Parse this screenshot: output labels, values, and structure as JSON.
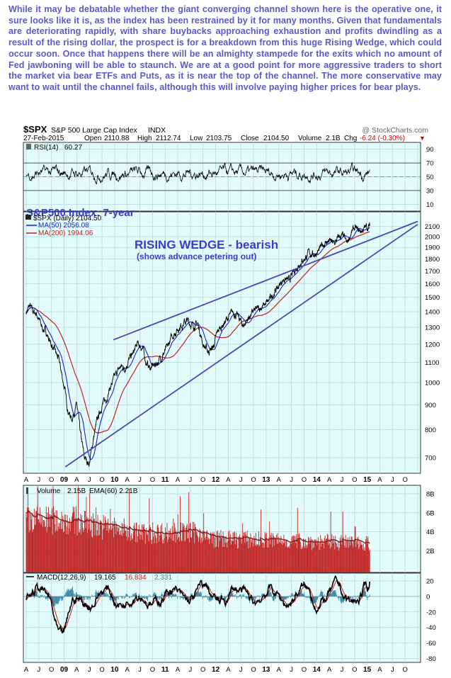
{
  "commentary": "While it may be debatable whether the giant converging channel shown here is the operative one, it sure looks like it is, as the index has been restrained by it for many months. Given that fundamentals are deteriorating rapidly, with share buybacks approaching exhaustion and profits dwindling as a result of the rising dollar, the prospect is for a breakdown from this huge Rising Wedge, which could occur soon. Once that happens there will be an almighty stampede for the exits which no amount of Fed jawboning will be able to staunch. We are at a good point for more aggressive traders to short the market via bear ETFs and Puts, as it is near the top of the channel. The more conservative may want to wait until the channel fails, although this will involve paying higher prices for bear plays.",
  "header": {
    "symbol": "$SPX",
    "name": "S&P 500 Large Cap Index",
    "exchange": "INDX",
    "credit": "@ StockCharts.com",
    "date": "27-Feb-2015",
    "open_label": "Open",
    "open": "2110.88",
    "high_label": "High",
    "high": "2112.74",
    "low_label": "Low",
    "low": "2103.75",
    "close_label": "Close",
    "close": "2104.50",
    "volume_label": "Volume",
    "volume": "2.1B",
    "chg_label": "Chg",
    "chg": "-6.24 (-0.30%)",
    "chg_arrow": "▼"
  },
  "colors": {
    "panel_bg": "#e3fbfb",
    "grid": "#b9dada",
    "commentary": "#5a5acc",
    "annotation": "#3b3bd0",
    "trendline": "#4848b8",
    "price": "#000000",
    "ma50": "#1e1ed8",
    "ma200": "#c81e1e",
    "volume_bar": "#c02828",
    "macd_signal": "#3a8aa8",
    "chg_red": "#cc0000"
  },
  "rsi_panel": {
    "legend_symbol": "RSI(14)",
    "legend_value": "60.27",
    "ticks": [
      "90",
      "70",
      "50",
      "30",
      "10"
    ]
  },
  "price_panel": {
    "annotation_period": "S&P500 Index: 7-year",
    "annotation_title": "RISING WEDGE - bearish",
    "annotation_sub": "(shows advance petering out)",
    "legend": [
      {
        "label": "$SPX (Daily) 2104.50"
      },
      {
        "label": "MA(50) 2056.08"
      },
      {
        "label": "MA(200) 1994.06"
      }
    ]
  },
  "volume_panel": {
    "legend_prefix": "Volume",
    "legend_value": "2.15B",
    "legend_ema": "EMA(60) 2.21B",
    "ticks": [
      "8B",
      "6B",
      "4B",
      "2B"
    ]
  },
  "macd_panel": {
    "legend_prefix": "MACD(12,26,9)",
    "legend_macd": "19.165",
    "legend_signal": "16.834",
    "legend_hist": "2.331"
  },
  "month_labels": [
    "A",
    "J",
    "O",
    "09",
    "A",
    "J",
    "O",
    "10",
    "A",
    "J",
    "O",
    "11",
    "A",
    "J",
    "O",
    "12",
    "A",
    "J",
    "O",
    "13",
    "A",
    "J",
    "O",
    "14",
    "A",
    "J",
    "O",
    "15",
    "A",
    "J",
    "O"
  ],
  "chart_data": {
    "type": "line",
    "x_axis": "time (quarters, Apr-2008 to Oct-2015)",
    "price": {
      "scale": "log",
      "ticks": [
        700,
        800,
        900,
        1000,
        1100,
        1200,
        1300,
        1400,
        1500,
        1600,
        1700,
        1800,
        1900,
        2000,
        2100
      ],
      "series": [
        {
          "name": "$SPX (Daily)",
          "t": [
            0,
            0.15,
            0.3,
            0.5,
            0.8,
            1.0,
            1.25,
            1.6,
            1.9,
            2.2,
            2.6,
            3.0,
            3.3,
            3.6,
            4.0,
            4.3,
            4.6,
            5.0,
            5.3,
            5.6,
            6.0,
            6.3,
            6.6,
            6.9,
            7.2,
            7.5,
            7.8,
            8.1,
            8.5,
            8.8,
            9.2,
            9.5,
            9.8,
            10.2,
            10.5,
            10.8,
            11.2,
            11.5,
            11.8,
            12.1,
            12.5,
            12.8,
            13.2,
            13.6,
            14.0,
            14.4,
            14.8,
            15.2,
            15.6,
            16.0,
            16.4,
            16.8,
            17.2,
            17.6,
            18.0,
            18.4,
            18.8,
            19.2,
            19.6,
            20.0,
            20.4,
            20.8,
            21.2,
            21.6,
            22.0,
            22.4,
            22.8,
            23.2,
            23.6,
            24.0,
            24.4,
            24.8,
            25.1,
            25.4,
            25.7,
            26.0,
            26.3,
            26.6,
            26.9,
            27.2
          ],
          "values": [
            1400,
            1420,
            1440,
            1400,
            1390,
            1350,
            1300,
            1270,
            1210,
            1170,
            1110,
            980,
            880,
            840,
            900,
            780,
            700,
            680,
            760,
            830,
            900,
            920,
            970,
            1010,
            1050,
            1080,
            1070,
            1110,
            1150,
            1200,
            1180,
            1100,
            1070,
            1090,
            1110,
            1140,
            1180,
            1240,
            1270,
            1300,
            1330,
            1340,
            1310,
            1320,
            1200,
            1160,
            1180,
            1280,
            1320,
            1360,
            1400,
            1360,
            1310,
            1360,
            1400,
            1420,
            1440,
            1470,
            1530,
            1580,
            1640,
            1620,
            1690,
            1760,
            1800,
            1850,
            1840,
            1870,
            1940,
            1960,
            1930,
            2000,
            2000,
            1930,
            2030,
            2080,
            2050,
            2060,
            2090,
            2104.5
          ]
        },
        {
          "name": "MA(50)",
          "values": "smoothed"
        },
        {
          "name": "MA(200)",
          "values": "smoothed"
        }
      ],
      "trendlines": [
        {
          "name": "wedge upper",
          "from": [
            6.9,
            1225
          ],
          "to": [
            31.0,
            2150
          ]
        },
        {
          "name": "wedge lower",
          "from": [
            3.1,
            670
          ],
          "to": [
            31.0,
            2120
          ]
        }
      ]
    },
    "rsi": {
      "ticks": [
        90,
        70,
        50,
        30,
        10
      ],
      "last": 60.27
    },
    "volume": {
      "ticks_billions": [
        8,
        6,
        4,
        2
      ],
      "last_billions": 2.15,
      "ema60_billions": 2.21
    },
    "macd": {
      "ticks": [
        20,
        0,
        -20,
        -40,
        -60,
        -80
      ],
      "macd": 19.165,
      "signal": 16.834,
      "histogram": 2.331
    }
  }
}
